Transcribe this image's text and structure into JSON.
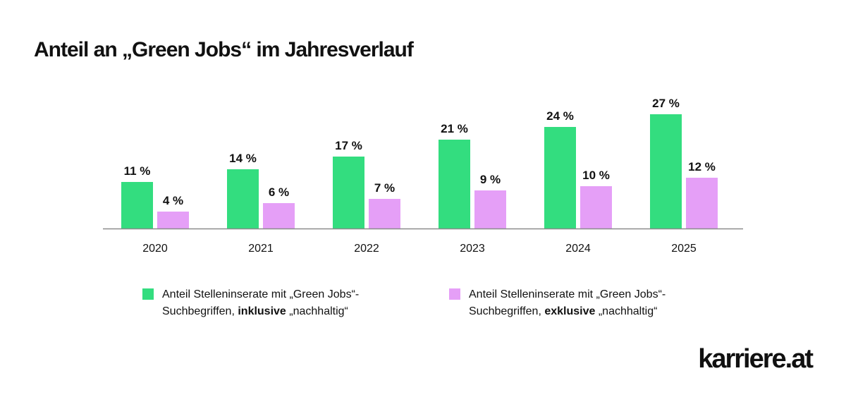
{
  "title": "Anteil an „Green Jobs“ im Jahresverlauf",
  "chart_data": {
    "type": "bar",
    "categories": [
      "2020",
      "2021",
      "2022",
      "2023",
      "2024",
      "2025"
    ],
    "series": [
      {
        "name_start": "Anteil Stelleninserate mit „Green Jobs“-Suchbegriffen, ",
        "name_emphasis": "inklusive",
        "name_end": " „nachhaltig“",
        "color": "#33dd7f",
        "values": [
          11,
          14,
          17,
          21,
          24,
          27
        ],
        "labels": [
          "11 %",
          "14 %",
          "17 %",
          "21 %",
          "24 %",
          "27 %"
        ]
      },
      {
        "name_start": "Anteil Stelleninserate mit „Green Jobs“-Suchbegriffen, ",
        "name_emphasis": "exklusive",
        "name_end": " „nachhaltig“",
        "color": "#e59ff7",
        "values": [
          4,
          6,
          7,
          9,
          10,
          12
        ],
        "labels": [
          "4 %",
          "6 %",
          "7 %",
          "9 %",
          "10 %",
          "12 %"
        ]
      }
    ],
    "ylim": [
      0,
      30
    ],
    "grid": false,
    "legend_position": "bottom",
    "baseline_color": "#8c8c8c"
  },
  "brand": {
    "logo_text": "karriere.at"
  }
}
